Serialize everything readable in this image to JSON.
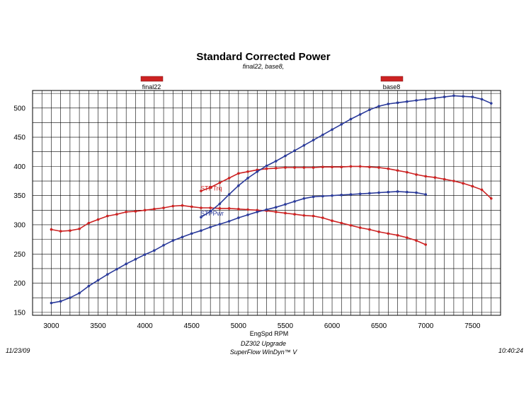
{
  "chart_data": {
    "type": "line",
    "title": "Standard Corrected Power",
    "subtitle": "final22, base8,",
    "xlabel": "EngSpd  RPM",
    "ylabel": "",
    "xlim": [
      2800,
      7800
    ],
    "ylim": [
      145,
      530
    ],
    "grid": true,
    "x_ticks": [
      3000,
      3500,
      4000,
      4500,
      5000,
      5500,
      6000,
      6500,
      7000,
      7500
    ],
    "y_ticks": [
      150,
      200,
      250,
      300,
      350,
      400,
      450,
      500
    ],
    "legend": [
      {
        "label": "final22",
        "color": "#cc2222"
      },
      {
        "label": "base8",
        "color": "#cc2222"
      }
    ],
    "series_labels": [
      {
        "text": "STPTrq",
        "x": 4600,
        "y": 356,
        "color": "#cc2222"
      },
      {
        "text": "STPPwr",
        "x": 4600,
        "y": 312,
        "color": "#2a3a9a"
      }
    ],
    "series": [
      {
        "color": "#cc2222",
        "x": [
          3000,
          3100,
          3200,
          3300,
          3400,
          3500,
          3600,
          3700,
          3800,
          3900,
          4000,
          4100,
          4200,
          4300,
          4400,
          4500,
          4600,
          4700,
          4800,
          4900,
          5000,
          5100,
          5200,
          5300,
          5400,
          5500,
          5600,
          5700,
          5800,
          5900,
          6000,
          6100,
          6200,
          6300,
          6400,
          6500,
          6600,
          6700,
          6800,
          6900,
          7000
        ],
        "y": [
          292,
          289,
          290,
          293,
          303,
          309,
          315,
          318,
          322,
          323,
          325,
          327,
          329,
          332,
          333,
          331,
          329,
          329,
          328,
          328,
          327,
          326,
          325,
          324,
          322,
          320,
          318,
          316,
          315,
          312,
          307,
          303,
          299,
          295,
          292,
          288,
          285,
          282,
          278,
          273,
          266
        ]
      },
      {
        "color": "#2a3a9a",
        "x": [
          3000,
          3100,
          3200,
          3300,
          3400,
          3500,
          3600,
          3700,
          3800,
          3900,
          4000,
          4100,
          4200,
          4300,
          4400,
          4500,
          4600,
          4700,
          4800,
          4900,
          5000,
          5100,
          5200,
          5300,
          5400,
          5500,
          5600,
          5700,
          5800,
          5900,
          6000,
          6100,
          6200,
          6300,
          6400,
          6500,
          6600,
          6700,
          6800,
          6900,
          7000
        ],
        "y": [
          166,
          169,
          175,
          183,
          195,
          205,
          215,
          224,
          233,
          241,
          249,
          256,
          265,
          273,
          279,
          285,
          290,
          296,
          301,
          306,
          312,
          317,
          322,
          326,
          330,
          335,
          340,
          345,
          348,
          349,
          350,
          351,
          352,
          353,
          354,
          355,
          356,
          357,
          356,
          355,
          352
        ]
      },
      {
        "color": "#cc2222",
        "x": [
          4600,
          4700,
          4800,
          4900,
          5000,
          5100,
          5200,
          5300,
          5400,
          5500,
          5600,
          5700,
          5800,
          5900,
          6000,
          6100,
          6200,
          6300,
          6400,
          6500,
          6600,
          6700,
          6800,
          6900,
          7000,
          7100,
          7200,
          7300,
          7400,
          7500,
          7600,
          7700
        ],
        "y": [
          358,
          364,
          372,
          380,
          388,
          391,
          394,
          396,
          397,
          398,
          398,
          398,
          398,
          399,
          399,
          399,
          400,
          400,
          399,
          398,
          396,
          393,
          390,
          386,
          383,
          381,
          378,
          375,
          371,
          366,
          360,
          345
        ]
      },
      {
        "color": "#2a3a9a",
        "x": [
          4600,
          4700,
          4800,
          4900,
          5000,
          5100,
          5200,
          5300,
          5400,
          5500,
          5600,
          5700,
          5800,
          5900,
          6000,
          6100,
          6200,
          6300,
          6400,
          6500,
          6600,
          6700,
          6800,
          6900,
          7000,
          7100,
          7200,
          7300,
          7400,
          7500,
          7600,
          7700
        ],
        "y": [
          313,
          323,
          336,
          352,
          367,
          380,
          391,
          401,
          409,
          418,
          427,
          436,
          445,
          454,
          463,
          472,
          481,
          489,
          497,
          503,
          507,
          509,
          511,
          513,
          515,
          517,
          519,
          521,
          520,
          519,
          515,
          508
        ]
      }
    ]
  },
  "footer": {
    "date": "11/23/09",
    "line1": "DZ302 Upgrade",
    "line2": "SuperFlow WinDyn™ V",
    "time": "10:40:24"
  }
}
